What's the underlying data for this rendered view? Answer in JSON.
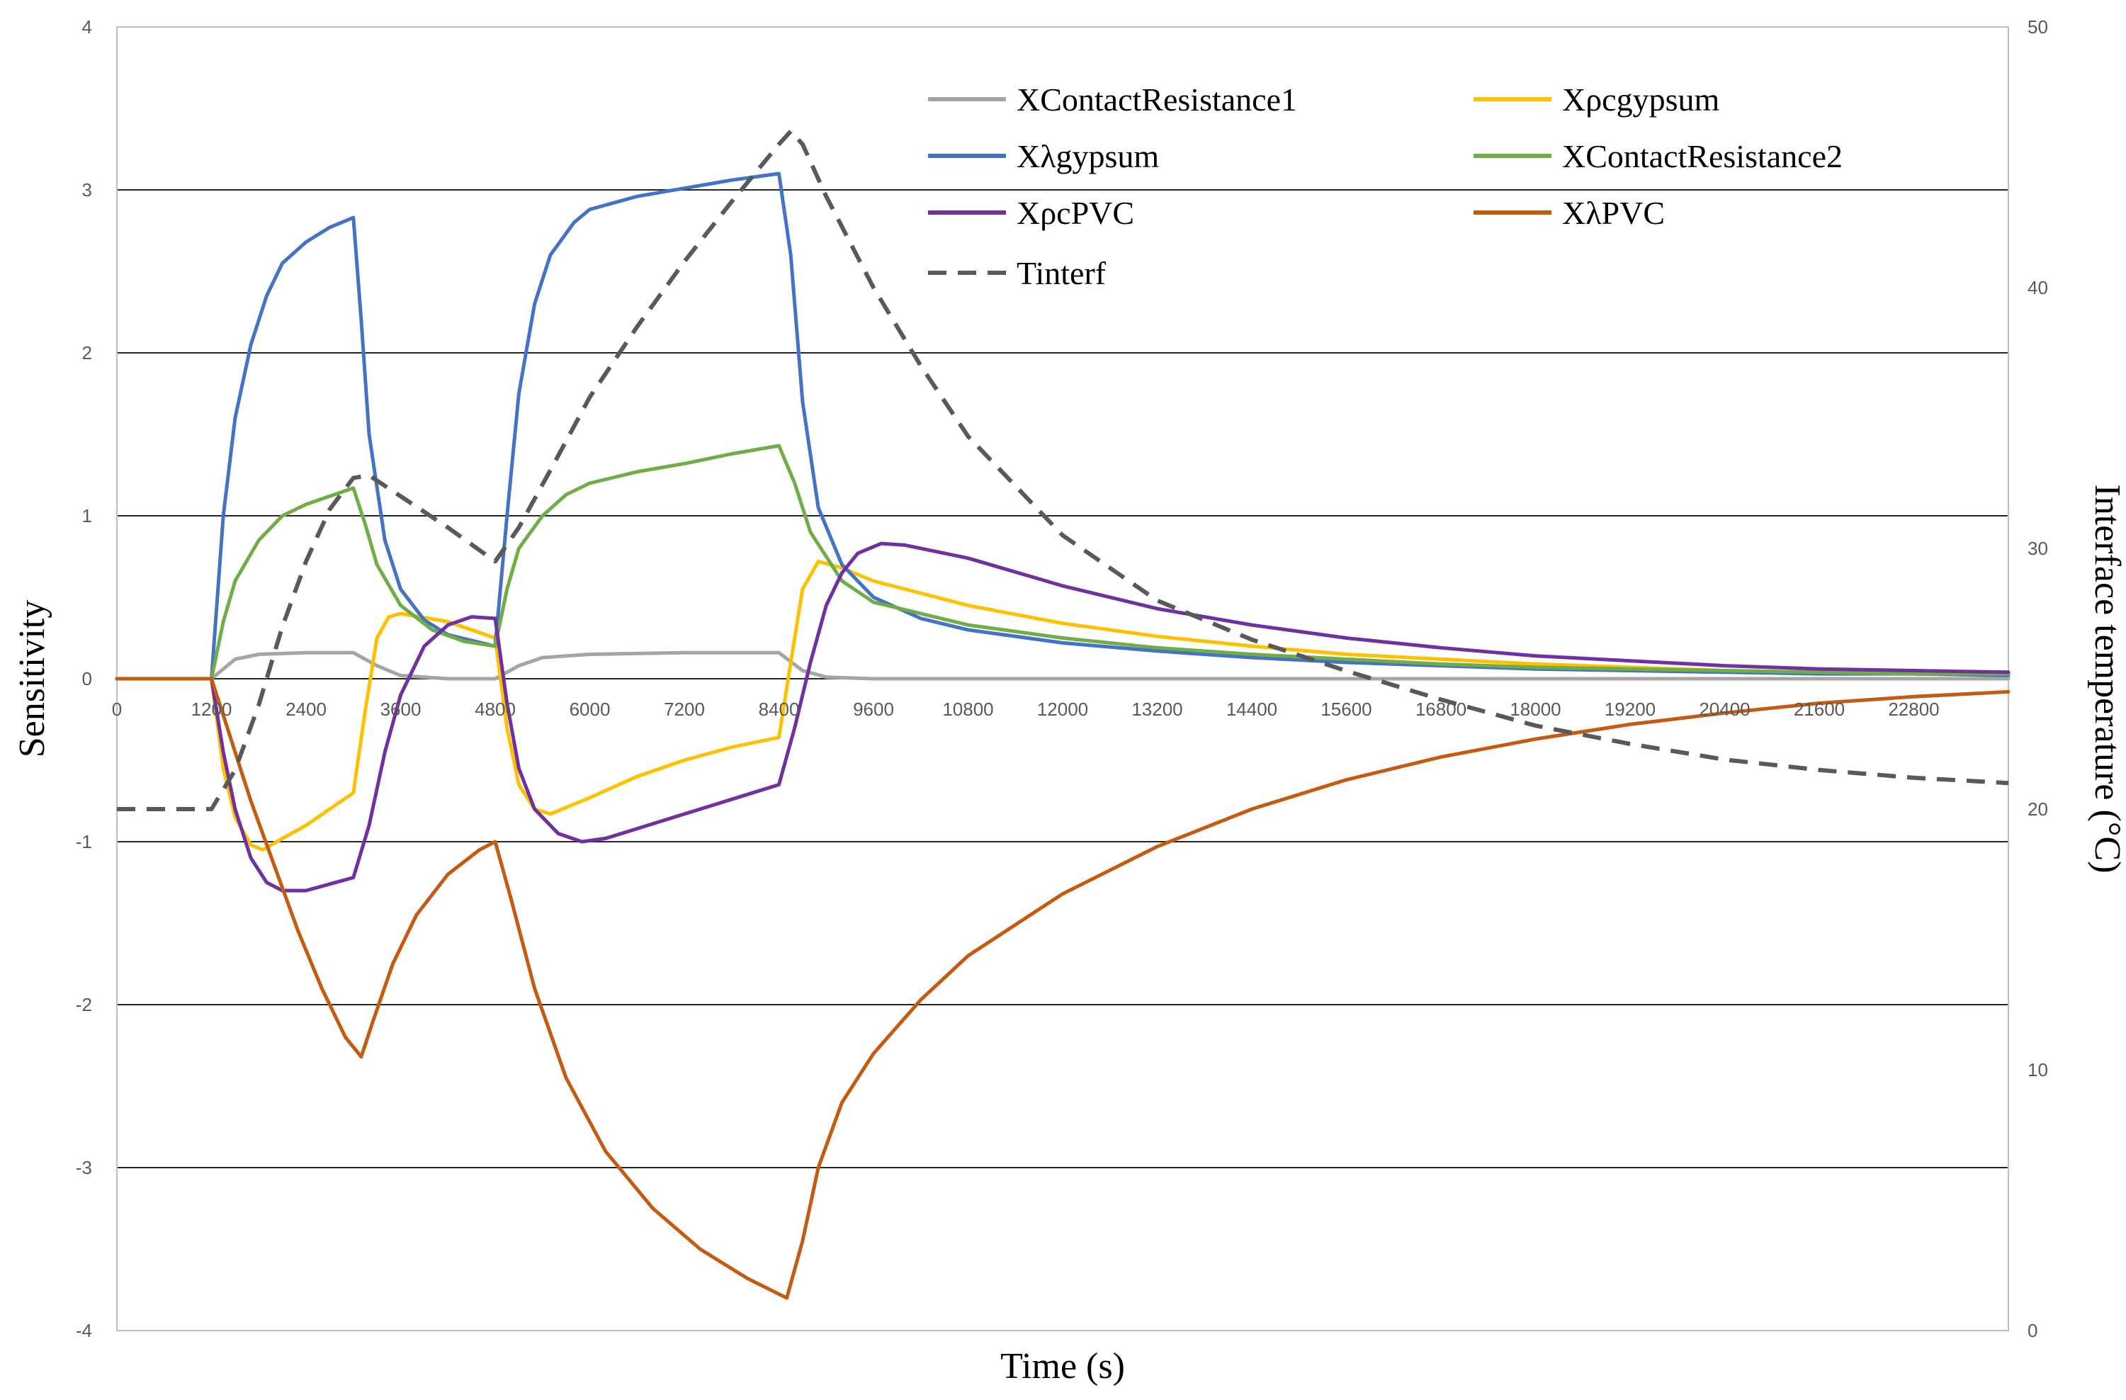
{
  "chart_data": {
    "type": "line",
    "xlabel": "Time (s)",
    "ylabel": "Sensitivity",
    "y2label": "Interface temperature (°C)",
    "xlim": [
      0,
      24000
    ],
    "ylim": [
      -4,
      4
    ],
    "y2lim": [
      0,
      50
    ],
    "x_ticks": [
      "0",
      "1200",
      "2400",
      "3600",
      "4800",
      "6000",
      "7200",
      "8400",
      "9600",
      "10800",
      "12000",
      "13200",
      "14400",
      "15600",
      "16800",
      "18000",
      "19200",
      "20400",
      "21600",
      "22800"
    ],
    "y_ticks": [
      "-4",
      "-3",
      "-2",
      "-1",
      "0",
      "1",
      "2",
      "3",
      "4"
    ],
    "y2_ticks": [
      "0",
      "10",
      "20",
      "30",
      "40",
      "50"
    ],
    "grid": "horizontal major",
    "legend_position": "top-right",
    "series": [
      {
        "name": "XContactResistance1",
        "axis": "left",
        "color": "#a5a5a5",
        "dash": "solid",
        "points": [
          [
            0,
            0
          ],
          [
            1200,
            0
          ],
          [
            1500,
            0.12
          ],
          [
            1800,
            0.15
          ],
          [
            2400,
            0.16
          ],
          [
            3000,
            0.16
          ],
          [
            3300,
            0.08
          ],
          [
            3600,
            0.02
          ],
          [
            4200,
            0
          ],
          [
            4800,
            0
          ],
          [
            5100,
            0.08
          ],
          [
            5400,
            0.13
          ],
          [
            6000,
            0.15
          ],
          [
            7200,
            0.16
          ],
          [
            8400,
            0.16
          ],
          [
            8700,
            0.05
          ],
          [
            9000,
            0.01
          ],
          [
            9600,
            0
          ],
          [
            24000,
            0
          ]
        ]
      },
      {
        "name": "Xρcgypsum",
        "axis": "left",
        "color": "#ffc000",
        "dash": "solid",
        "points": [
          [
            0,
            0
          ],
          [
            1200,
            0
          ],
          [
            1350,
            -0.55
          ],
          [
            1500,
            -0.85
          ],
          [
            1700,
            -1.02
          ],
          [
            1850,
            -1.05
          ],
          [
            2100,
            -0.98
          ],
          [
            2400,
            -0.9
          ],
          [
            2700,
            -0.8
          ],
          [
            3000,
            -0.7
          ],
          [
            3150,
            -0.2
          ],
          [
            3300,
            0.25
          ],
          [
            3450,
            0.38
          ],
          [
            3600,
            0.4
          ],
          [
            4200,
            0.35
          ],
          [
            4800,
            0.25
          ],
          [
            4950,
            -0.3
          ],
          [
            5100,
            -0.65
          ],
          [
            5300,
            -0.8
          ],
          [
            5500,
            -0.83
          ],
          [
            6000,
            -0.73
          ],
          [
            6600,
            -0.6
          ],
          [
            7200,
            -0.5
          ],
          [
            7800,
            -0.42
          ],
          [
            8400,
            -0.36
          ],
          [
            8550,
            0.1
          ],
          [
            8700,
            0.55
          ],
          [
            8900,
            0.72
          ],
          [
            9200,
            0.68
          ],
          [
            9600,
            0.6
          ],
          [
            10800,
            0.45
          ],
          [
            12000,
            0.34
          ],
          [
            13200,
            0.26
          ],
          [
            14400,
            0.2
          ],
          [
            15600,
            0.15
          ],
          [
            16800,
            0.12
          ],
          [
            18000,
            0.09
          ],
          [
            19200,
            0.07
          ],
          [
            20400,
            0.05
          ],
          [
            21600,
            0.04
          ],
          [
            22800,
            0.03
          ],
          [
            24000,
            0.03
          ]
        ]
      },
      {
        "name": "Xλgypsum",
        "axis": "left",
        "color": "#4472c4",
        "dash": "solid",
        "points": [
          [
            0,
            0
          ],
          [
            1200,
            0
          ],
          [
            1350,
            1.0
          ],
          [
            1500,
            1.6
          ],
          [
            1700,
            2.05
          ],
          [
            1900,
            2.35
          ],
          [
            2100,
            2.55
          ],
          [
            2400,
            2.68
          ],
          [
            2700,
            2.77
          ],
          [
            3000,
            2.83
          ],
          [
            3100,
            2.2
          ],
          [
            3200,
            1.5
          ],
          [
            3400,
            0.85
          ],
          [
            3600,
            0.55
          ],
          [
            3900,
            0.36
          ],
          [
            4200,
            0.27
          ],
          [
            4800,
            0.2
          ],
          [
            4950,
            1.0
          ],
          [
            5100,
            1.75
          ],
          [
            5300,
            2.3
          ],
          [
            5500,
            2.6
          ],
          [
            5800,
            2.8
          ],
          [
            6000,
            2.88
          ],
          [
            6600,
            2.96
          ],
          [
            7200,
            3.01
          ],
          [
            7800,
            3.06
          ],
          [
            8400,
            3.1
          ],
          [
            8550,
            2.6
          ],
          [
            8700,
            1.7
          ],
          [
            8900,
            1.05
          ],
          [
            9200,
            0.7
          ],
          [
            9600,
            0.5
          ],
          [
            10200,
            0.37
          ],
          [
            10800,
            0.3
          ],
          [
            12000,
            0.22
          ],
          [
            13200,
            0.17
          ],
          [
            14400,
            0.13
          ],
          [
            15600,
            0.1
          ],
          [
            16800,
            0.08
          ],
          [
            18000,
            0.06
          ],
          [
            19200,
            0.05
          ],
          [
            20400,
            0.04
          ],
          [
            21600,
            0.03
          ],
          [
            22800,
            0.03
          ],
          [
            24000,
            0.02
          ]
        ]
      },
      {
        "name": "XContactResistance2",
        "axis": "left",
        "color": "#70ad47",
        "dash": "solid",
        "points": [
          [
            0,
            0
          ],
          [
            1200,
            0
          ],
          [
            1350,
            0.35
          ],
          [
            1500,
            0.6
          ],
          [
            1800,
            0.85
          ],
          [
            2100,
            1.0
          ],
          [
            2400,
            1.07
          ],
          [
            2700,
            1.12
          ],
          [
            3000,
            1.17
          ],
          [
            3150,
            0.95
          ],
          [
            3300,
            0.7
          ],
          [
            3600,
            0.45
          ],
          [
            4000,
            0.3
          ],
          [
            4400,
            0.23
          ],
          [
            4800,
            0.2
          ],
          [
            4950,
            0.55
          ],
          [
            5100,
            0.8
          ],
          [
            5400,
            1.0
          ],
          [
            5700,
            1.13
          ],
          [
            6000,
            1.2
          ],
          [
            6600,
            1.27
          ],
          [
            7200,
            1.32
          ],
          [
            7800,
            1.38
          ],
          [
            8400,
            1.43
          ],
          [
            8600,
            1.2
          ],
          [
            8800,
            0.9
          ],
          [
            9200,
            0.6
          ],
          [
            9600,
            0.47
          ],
          [
            10800,
            0.33
          ],
          [
            12000,
            0.25
          ],
          [
            13200,
            0.19
          ],
          [
            14400,
            0.15
          ],
          [
            15600,
            0.12
          ],
          [
            16800,
            0.09
          ],
          [
            18000,
            0.07
          ],
          [
            19200,
            0.06
          ],
          [
            20400,
            0.05
          ],
          [
            21600,
            0.04
          ],
          [
            22800,
            0.03
          ],
          [
            24000,
            0.03
          ]
        ]
      },
      {
        "name": "XρcPVC",
        "axis": "left",
        "color": "#7030a0",
        "dash": "solid",
        "points": [
          [
            0,
            0
          ],
          [
            1200,
            0
          ],
          [
            1350,
            -0.45
          ],
          [
            1500,
            -0.8
          ],
          [
            1700,
            -1.1
          ],
          [
            1900,
            -1.25
          ],
          [
            2100,
            -1.3
          ],
          [
            2400,
            -1.3
          ],
          [
            2700,
            -1.26
          ],
          [
            3000,
            -1.22
          ],
          [
            3200,
            -0.9
          ],
          [
            3400,
            -0.45
          ],
          [
            3600,
            -0.1
          ],
          [
            3900,
            0.2
          ],
          [
            4200,
            0.33
          ],
          [
            4500,
            0.38
          ],
          [
            4800,
            0.37
          ],
          [
            4950,
            -0.15
          ],
          [
            5100,
            -0.55
          ],
          [
            5300,
            -0.8
          ],
          [
            5600,
            -0.95
          ],
          [
            5900,
            -1.0
          ],
          [
            6200,
            -0.98
          ],
          [
            6600,
            -0.92
          ],
          [
            7200,
            -0.83
          ],
          [
            7800,
            -0.74
          ],
          [
            8400,
            -0.65
          ],
          [
            8600,
            -0.3
          ],
          [
            8800,
            0.1
          ],
          [
            9000,
            0.45
          ],
          [
            9200,
            0.65
          ],
          [
            9400,
            0.77
          ],
          [
            9700,
            0.83
          ],
          [
            10000,
            0.82
          ],
          [
            10800,
            0.74
          ],
          [
            12000,
            0.57
          ],
          [
            13200,
            0.43
          ],
          [
            14400,
            0.33
          ],
          [
            15600,
            0.25
          ],
          [
            16800,
            0.19
          ],
          [
            18000,
            0.14
          ],
          [
            19200,
            0.11
          ],
          [
            20400,
            0.08
          ],
          [
            21600,
            0.06
          ],
          [
            22800,
            0.05
          ],
          [
            24000,
            0.04
          ]
        ]
      },
      {
        "name": "XλPVC",
        "axis": "left",
        "color": "#c55a11",
        "dash": "solid",
        "points": [
          [
            0,
            0
          ],
          [
            1200,
            0
          ],
          [
            1400,
            -0.3
          ],
          [
            1700,
            -0.75
          ],
          [
            2000,
            -1.15
          ],
          [
            2300,
            -1.55
          ],
          [
            2600,
            -1.9
          ],
          [
            2900,
            -2.2
          ],
          [
            3100,
            -2.32
          ],
          [
            3250,
            -2.1
          ],
          [
            3500,
            -1.75
          ],
          [
            3800,
            -1.45
          ],
          [
            4200,
            -1.2
          ],
          [
            4600,
            -1.05
          ],
          [
            4800,
            -1.0
          ],
          [
            5000,
            -1.35
          ],
          [
            5300,
            -1.9
          ],
          [
            5700,
            -2.45
          ],
          [
            6200,
            -2.9
          ],
          [
            6800,
            -3.25
          ],
          [
            7400,
            -3.5
          ],
          [
            8000,
            -3.68
          ],
          [
            8500,
            -3.8
          ],
          [
            8700,
            -3.45
          ],
          [
            8900,
            -3.0
          ],
          [
            9200,
            -2.6
          ],
          [
            9600,
            -2.3
          ],
          [
            10200,
            -1.97
          ],
          [
            10800,
            -1.7
          ],
          [
            12000,
            -1.32
          ],
          [
            13200,
            -1.03
          ],
          [
            14400,
            -0.8
          ],
          [
            15600,
            -0.62
          ],
          [
            16800,
            -0.48
          ],
          [
            18000,
            -0.37
          ],
          [
            19200,
            -0.28
          ],
          [
            20400,
            -0.21
          ],
          [
            21600,
            -0.15
          ],
          [
            22800,
            -0.11
          ],
          [
            24000,
            -0.08
          ]
        ]
      },
      {
        "name": "Tinterf",
        "axis": "right",
        "color": "#595959",
        "dash": "dashed",
        "points": [
          [
            0,
            20
          ],
          [
            1200,
            20
          ],
          [
            1500,
            21.5
          ],
          [
            1800,
            24
          ],
          [
            2100,
            27
          ],
          [
            2400,
            29.5
          ],
          [
            2700,
            31.5
          ],
          [
            3000,
            32.7
          ],
          [
            3200,
            32.8
          ],
          [
            3600,
            32
          ],
          [
            4200,
            30.8
          ],
          [
            4800,
            29.5
          ],
          [
            5100,
            30.8
          ],
          [
            5500,
            33
          ],
          [
            6000,
            35.8
          ],
          [
            6600,
            38.5
          ],
          [
            7200,
            41
          ],
          [
            7800,
            43.3
          ],
          [
            8400,
            45.5
          ],
          [
            8550,
            46
          ],
          [
            8700,
            45.5
          ],
          [
            9000,
            43.5
          ],
          [
            9600,
            40
          ],
          [
            10200,
            37
          ],
          [
            10800,
            34.3
          ],
          [
            12000,
            30.5
          ],
          [
            13200,
            28
          ],
          [
            14400,
            26.5
          ],
          [
            15600,
            25.3
          ],
          [
            16800,
            24.2
          ],
          [
            18000,
            23.2
          ],
          [
            19200,
            22.5
          ],
          [
            20400,
            21.9
          ],
          [
            21600,
            21.5
          ],
          [
            22800,
            21.2
          ],
          [
            24000,
            21
          ]
        ]
      }
    ]
  }
}
